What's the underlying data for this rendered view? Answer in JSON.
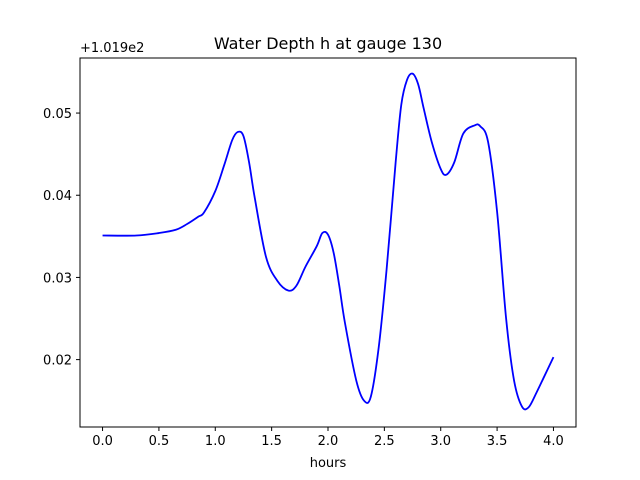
{
  "chart_data": {
    "type": "line",
    "title": "Water Depth h at gauge 130",
    "xlabel": "hours",
    "ylabel": "",
    "offset_label": "+1.019e2",
    "xlim": [
      -0.2,
      4.2
    ],
    "ylim": [
      0.0118,
      0.0567
    ],
    "xticks": [
      0.0,
      0.5,
      1.0,
      1.5,
      2.0,
      2.5,
      3.0,
      3.5,
      4.0
    ],
    "xtick_labels": [
      "0.0",
      "0.5",
      "1.0",
      "1.5",
      "2.0",
      "2.5",
      "3.0",
      "3.5",
      "4.0"
    ],
    "yticks": [
      0.02,
      0.03,
      0.04,
      0.05
    ],
    "ytick_labels": [
      "0.02",
      "0.03",
      "0.04",
      "0.05"
    ],
    "grid": false,
    "series": [
      {
        "color": "#0000ff",
        "x": [
          0.0,
          0.3,
          0.5,
          0.65,
          0.75,
          0.85,
          0.9,
          1.0,
          1.08,
          1.15,
          1.2,
          1.25,
          1.3,
          1.35,
          1.45,
          1.55,
          1.65,
          1.72,
          1.8,
          1.9,
          1.95,
          2.0,
          2.05,
          2.1,
          2.15,
          2.25,
          2.32,
          2.38,
          2.45,
          2.52,
          2.6,
          2.65,
          2.7,
          2.75,
          2.8,
          2.85,
          2.92,
          3.0,
          3.05,
          3.12,
          3.2,
          3.3,
          3.35,
          3.42,
          3.5,
          3.58,
          3.65,
          3.72,
          3.78,
          3.85,
          3.92,
          4.0
        ],
        "y": [
          0.0351,
          0.0351,
          0.0354,
          0.0358,
          0.0365,
          0.0374,
          0.0379,
          0.0405,
          0.0437,
          0.0467,
          0.0477,
          0.0472,
          0.044,
          0.0397,
          0.0325,
          0.0296,
          0.0284,
          0.029,
          0.0313,
          0.0338,
          0.0354,
          0.0352,
          0.033,
          0.029,
          0.0245,
          0.0175,
          0.015,
          0.0155,
          0.0215,
          0.031,
          0.044,
          0.051,
          0.054,
          0.0548,
          0.0535,
          0.0505,
          0.0465,
          0.0432,
          0.0425,
          0.044,
          0.0475,
          0.0485,
          0.0484,
          0.0465,
          0.038,
          0.025,
          0.0175,
          0.0143,
          0.0142,
          0.016,
          0.018,
          0.0203
        ]
      }
    ]
  }
}
